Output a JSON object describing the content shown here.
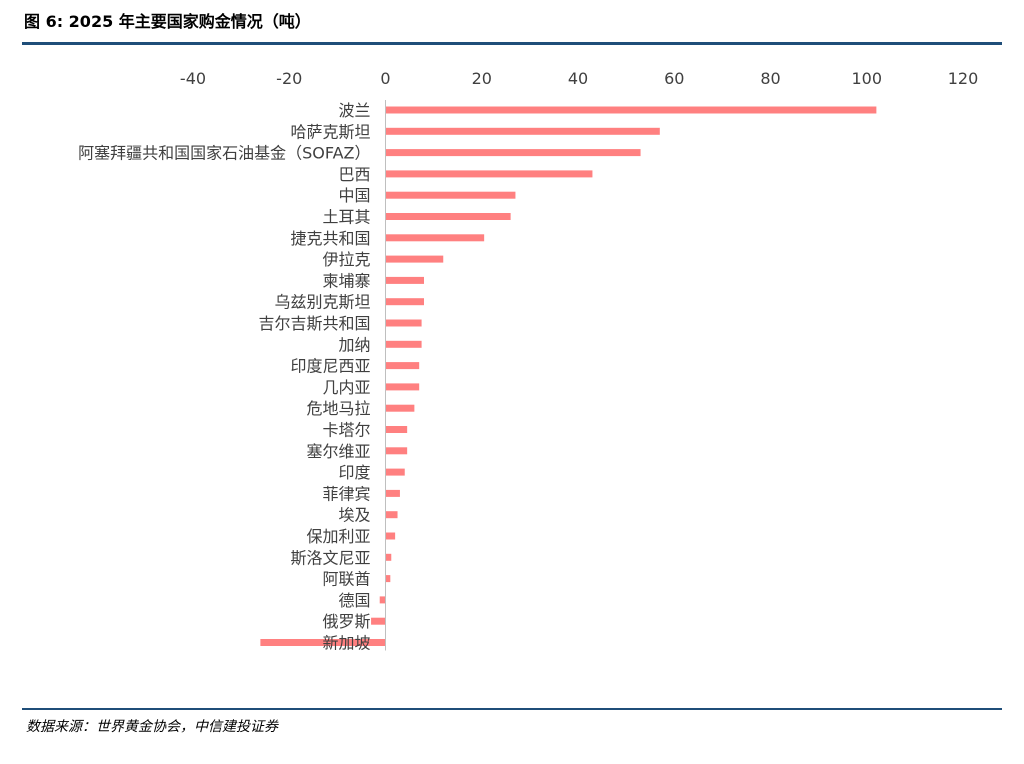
{
  "header": {
    "title": "图 6: 2025 年主要国家购金情况（吨）"
  },
  "footer": {
    "source": "数据来源：世界黄金协会，中信建投证券"
  },
  "chart_data": {
    "type": "bar",
    "orientation": "horizontal",
    "xlim": [
      -40,
      120
    ],
    "xticks": [
      "-40",
      "-20",
      "0",
      "20",
      "40",
      "60",
      "80",
      "100",
      "120"
    ],
    "categories": [
      "波兰",
      "哈萨克斯坦",
      "阿塞拜疆共和国国家石油基金（SOFAZ）",
      "巴西",
      "中国",
      "土耳其",
      "捷克共和国",
      "伊拉克",
      "柬埔寨",
      "乌兹别克斯坦",
      "吉尔吉斯共和国",
      "加纳",
      "印度尼西亚",
      "几内亚",
      "危地马拉",
      "卡塔尔",
      "塞尔维亚",
      "印度",
      "菲律宾",
      "埃及",
      "保加利亚",
      "斯洛文尼亚",
      "阿联酋",
      "德国",
      "俄罗斯",
      "新加坡"
    ],
    "values": [
      102,
      57,
      53,
      43,
      27,
      26,
      20.5,
      12,
      8,
      8,
      7.5,
      7.5,
      7,
      7,
      6,
      4.5,
      4.5,
      4,
      3,
      2.5,
      2,
      1.2,
      1,
      -1.2,
      -3,
      -26
    ],
    "bar_color": "#ff8080",
    "axis_color": "#bfbfbf",
    "grid": false,
    "legend": "none"
  }
}
